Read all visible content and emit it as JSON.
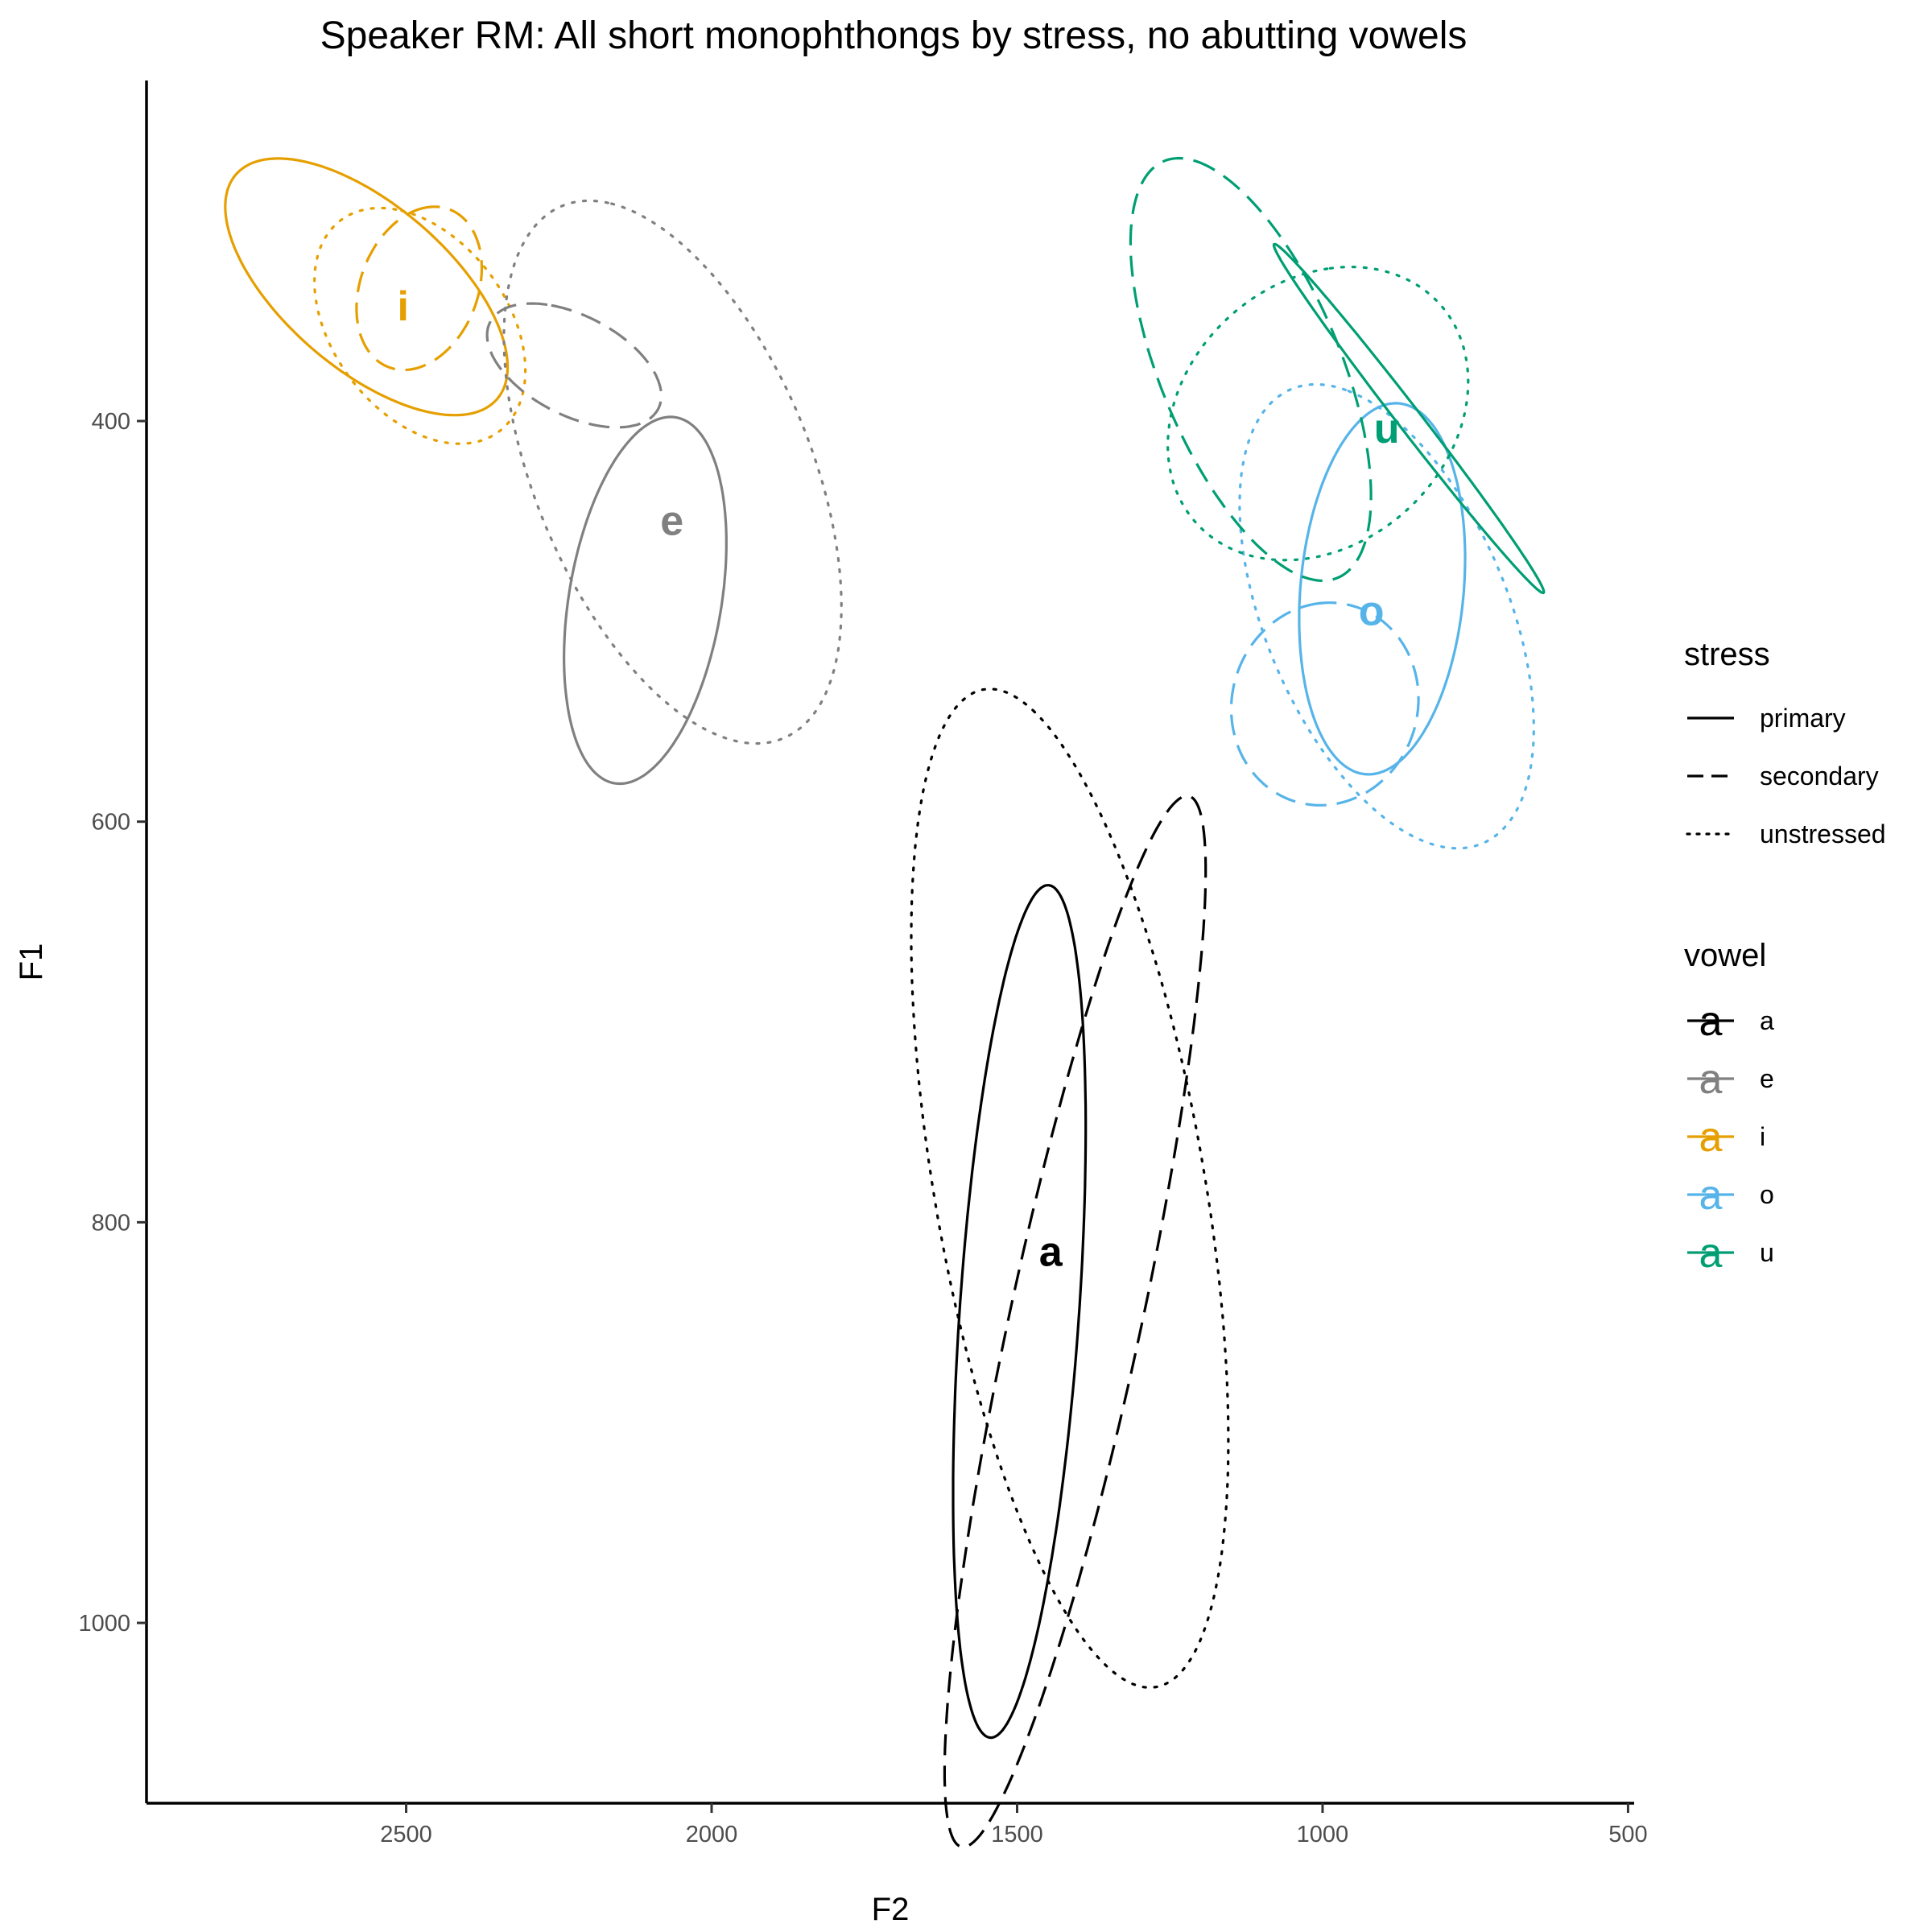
{
  "chart_data": {
    "type": "scatter",
    "title": "Speaker RM: All short monophthongs by stress, no abutting vowels",
    "xlabel": "F2",
    "ylabel": "F1",
    "x_reversed": true,
    "y_reversed": true,
    "xlim": [
      2925,
      490
    ],
    "ylim": [
      230,
      1090
    ],
    "x_ticks": [
      2500,
      2000,
      1500,
      1000,
      500
    ],
    "y_ticks": [
      400,
      600,
      800,
      1000
    ],
    "grid": false,
    "legend_position": "right",
    "ellipse_type": "confidence ellipses",
    "legends": [
      {
        "title": "stress",
        "entries": [
          {
            "label": "primary",
            "linetype": "solid"
          },
          {
            "label": "secondary",
            "linetype": "dashed"
          },
          {
            "label": "unstressed",
            "linetype": "dotted"
          }
        ]
      },
      {
        "title": "vowel",
        "glyph": "a",
        "entries": [
          {
            "label": "a",
            "color": "#000000"
          },
          {
            "label": "e",
            "color": "#808080"
          },
          {
            "label": "i",
            "color": "#E69F00"
          },
          {
            "label": "o",
            "color": "#56B4E9"
          },
          {
            "label": "u",
            "color": "#009E73"
          }
        ]
      }
    ],
    "vowel_labels": [
      {
        "vowel": "a",
        "text": "a",
        "f2": 1445,
        "f1": 815,
        "color": "#000000"
      },
      {
        "vowel": "e",
        "text": "e",
        "f2": 2065,
        "f1": 450,
        "color": "#808080"
      },
      {
        "vowel": "i",
        "text": "i",
        "f2": 2505,
        "f1": 343,
        "color": "#E69F00"
      },
      {
        "vowel": "o",
        "text": "o",
        "f2": 920,
        "f1": 495,
        "color": "#56B4E9"
      },
      {
        "vowel": "u",
        "text": "u",
        "f2": 895,
        "f1": 404,
        "color": "#009E73"
      }
    ],
    "ellipses": [
      {
        "vowel": "i",
        "stress": "primary",
        "color": "#E69F00",
        "points": [
          [
            2625,
            272
          ],
          [
            2345,
            360
          ],
          [
            2500,
            390
          ],
          [
            2790,
            310
          ],
          [
            2625,
            272
          ]
        ]
      },
      {
        "vowel": "i",
        "stress": "secondary",
        "color": "#E69F00",
        "points": [
          [
            2480,
            293
          ],
          [
            2375,
            325
          ],
          [
            2480,
            372
          ],
          [
            2580,
            345
          ],
          [
            2480,
            293
          ]
        ]
      },
      {
        "vowel": "i",
        "stress": "unstressed",
        "color": "#E69F00",
        "points": [
          [
            2505,
            300
          ],
          [
            2310,
            360
          ],
          [
            2445,
            415
          ],
          [
            2650,
            335
          ],
          [
            2505,
            300
          ]
        ]
      },
      {
        "vowel": "e",
        "stress": "primary",
        "color": "#808080",
        "points": [
          [
            2085,
            398
          ],
          [
            1975,
            480
          ],
          [
            2140,
            580
          ],
          [
            2235,
            500
          ],
          [
            2085,
            398
          ]
        ]
      },
      {
        "vowel": "e",
        "stress": "secondary",
        "color": "#808080",
        "points": [
          [
            2250,
            342
          ],
          [
            2100,
            380
          ],
          [
            2175,
            402
          ],
          [
            2375,
            365
          ],
          [
            2250,
            342
          ]
        ]
      },
      {
        "vowel": "e",
        "stress": "unstressed",
        "color": "#808080",
        "points": [
          [
            2140,
            307
          ],
          [
            1830,
            430
          ],
          [
            1940,
            575
          ],
          [
            2345,
            390
          ],
          [
            2140,
            307
          ]
        ]
      },
      {
        "vowel": "a",
        "stress": "primary",
        "color": "#000000",
        "points": [
          [
            1445,
            640
          ],
          [
            1415,
            800
          ],
          [
            1500,
            1058
          ],
          [
            1625,
            880
          ],
          [
            1445,
            640
          ]
        ]
      },
      {
        "vowel": "a",
        "stress": "secondary",
        "color": "#000000",
        "points": [
          [
            1295,
            605
          ],
          [
            1225,
            735
          ],
          [
            1500,
            1058
          ],
          [
            1600,
            1000
          ],
          [
            1295,
            605
          ]
        ]
      },
      {
        "vowel": "a",
        "stress": "unstressed",
        "color": "#000000",
        "points": [
          [
            1475,
            555
          ],
          [
            1160,
            845
          ],
          [
            1355,
            1032
          ],
          [
            1665,
            700
          ],
          [
            1475,
            555
          ]
        ]
      },
      {
        "vowel": "o",
        "stress": "primary",
        "color": "#56B4E9",
        "points": [
          [
            875,
            390
          ],
          [
            780,
            480
          ],
          [
            905,
            575
          ],
          [
            1050,
            490
          ],
          [
            875,
            390
          ]
        ]
      },
      {
        "vowel": "o",
        "stress": "secondary",
        "color": "#56B4E9",
        "points": [
          [
            1000,
            490
          ],
          [
            855,
            535
          ],
          [
            970,
            590
          ],
          [
            1160,
            550
          ],
          [
            1000,
            490
          ]
        ]
      },
      {
        "vowel": "o",
        "stress": "unstressed",
        "color": "#56B4E9",
        "points": [
          [
            955,
            390
          ],
          [
            665,
            520
          ],
          [
            830,
            615
          ],
          [
            1130,
            465
          ],
          [
            955,
            390
          ]
        ]
      },
      {
        "vowel": "u",
        "stress": "primary",
        "color": "#009E73",
        "points": [
          [
            960,
            335
          ],
          [
            755,
            450
          ],
          [
            650,
            470
          ],
          [
            1070,
            340
          ],
          [
            960,
            335
          ]
        ]
      },
      {
        "vowel": "u",
        "stress": "secondary",
        "color": "#009E73",
        "points": [
          [
            1150,
            282
          ],
          [
            1000,
            380
          ],
          [
            970,
            490
          ],
          [
            1350,
            345
          ],
          [
            1150,
            282
          ]
        ]
      },
      {
        "vowel": "u",
        "stress": "unstressed",
        "color": "#009E73",
        "points": [
          [
            990,
            330
          ],
          [
            760,
            380
          ],
          [
            1030,
            475
          ],
          [
            1250,
            400
          ],
          [
            990,
            330
          ]
        ]
      }
    ]
  }
}
